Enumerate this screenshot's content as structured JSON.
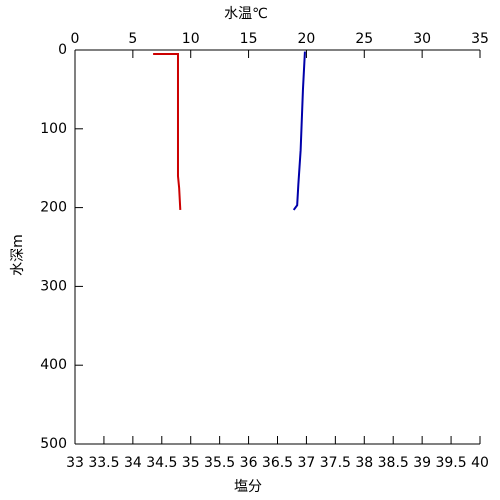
{
  "chart_data": {
    "type": "profile",
    "x_label": "塩分",
    "x2_label": "水温℃",
    "y_label": "水深m",
    "xlim": [
      33,
      40
    ],
    "xticks": [
      33,
      33.5,
      34,
      34.5,
      35,
      35.5,
      36,
      36.5,
      37,
      37.5,
      38,
      38.5,
      39,
      39.5,
      40
    ],
    "x2lim": [
      0,
      35
    ],
    "x2ticks": [
      0,
      5,
      10,
      15,
      20,
      25,
      30,
      35
    ],
    "ylim": [
      0,
      500
    ],
    "yticks": [
      0,
      100,
      200,
      300,
      400,
      500
    ],
    "y_inverted": true,
    "x_label_color": "#cc0000",
    "x2_label_color": "#0000aa",
    "series": [
      {
        "color": "#cc0000",
        "x": [
          34.35,
          34.78,
          34.78,
          34.78,
          34.8,
          34.82
        ],
        "values": [
          5,
          5,
          100,
          160,
          175,
          203
        ]
      },
      {
        "color": "#0000aa",
        "axis": "x2",
        "x": [
          19.87,
          19.7,
          19.5,
          19.3,
          19.2,
          18.9
        ],
        "values": [
          2,
          50,
          127,
          171,
          197,
          203
        ]
      }
    ]
  }
}
